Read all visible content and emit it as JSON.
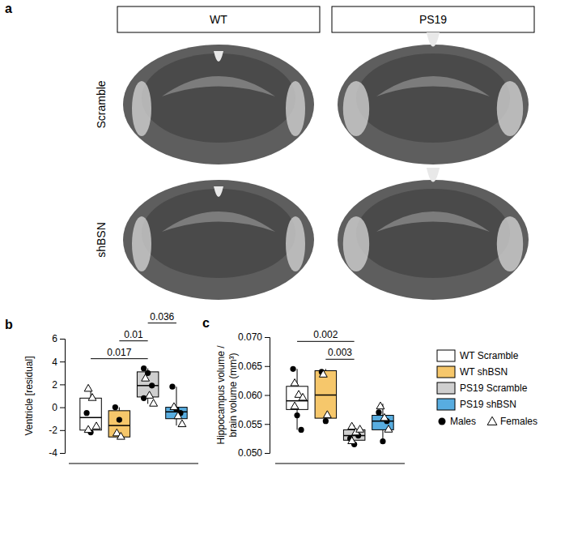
{
  "panel_a": {
    "label": "a",
    "columns": [
      "WT",
      "PS19"
    ],
    "rows": [
      "Scramble",
      "shBSN"
    ]
  },
  "legend": {
    "entries": [
      {
        "name": "WT Scramble",
        "color": "#ffffff"
      },
      {
        "name": "WT shBSN",
        "color": "#f6c76b"
      },
      {
        "name": "PS19 Scramble",
        "color": "#cfcfcf"
      },
      {
        "name": "PS19 shBSN",
        "color": "#58ade0"
      }
    ],
    "markers": [
      {
        "name": "Males",
        "marker": "circle"
      },
      {
        "name": "Females",
        "marker": "triangle"
      }
    ]
  },
  "chart_data": [
    {
      "type": "box",
      "panel_label": "b",
      "y_label": [
        "Ventricle [residual]"
      ],
      "ylim": [
        -4,
        6
      ],
      "yticks": [
        -4,
        -2,
        0,
        2,
        4,
        6
      ],
      "series": [
        {
          "box": {
            "whisker_low": -2.3,
            "q1": -2.0,
            "median": -0.9,
            "q3": 0.8,
            "whisker_high": 1.6
          },
          "males": [
            -0.5,
            -2.2
          ],
          "females": [
            1.6,
            0.8,
            -1.7,
            -2.0
          ]
        },
        {
          "box": {
            "whisker_low": -2.7,
            "q1": -2.6,
            "median": -1.6,
            "q3": -0.3,
            "whisker_high": 0.0
          },
          "males": [
            0.0,
            -1.1
          ],
          "females": [
            -2.3,
            -2.6
          ]
        },
        {
          "box": {
            "whisker_low": 0.3,
            "q1": 0.9,
            "median": 1.9,
            "q3": 3.1,
            "whisker_high": 3.4
          },
          "males": [
            3.4,
            3.0,
            1.9,
            0.8
          ],
          "females": [
            2.5,
            1.0,
            0.3
          ]
        },
        {
          "box": {
            "whisker_low": -1.6,
            "q1": -1.0,
            "median": -0.4,
            "q3": 0.0,
            "whisker_high": 1.8
          },
          "males": [
            1.8,
            -0.2,
            -0.5
          ],
          "females": [
            0.0,
            -0.8,
            -1.5
          ]
        }
      ],
      "annotations": [
        {
          "from": 0,
          "to": 2,
          "text": "0.017"
        },
        {
          "from": 1,
          "to": 2,
          "text": "0.01"
        },
        {
          "from": 2,
          "to": 3,
          "text": "0.036"
        }
      ]
    },
    {
      "type": "box",
      "panel_label": "c",
      "y_label": [
        "Hippocampus volume /",
        "brain volume (mm³)"
      ],
      "ylim": [
        0.05,
        0.07
      ],
      "yticks": [
        {
          "value": 0.05,
          "label": "0.050"
        },
        {
          "value": 0.055,
          "label": "0.055"
        },
        {
          "value": 0.06,
          "label": "0.060"
        },
        {
          "value": 0.065,
          "label": "0.065"
        },
        {
          "value": 0.07,
          "label": "0.070"
        }
      ],
      "series": [
        {
          "box": {
            "whisker_low": 0.054,
            "q1": 0.0575,
            "median": 0.059,
            "q3": 0.0615,
            "whisker_high": 0.0645
          },
          "males": [
            0.0645,
            0.0565,
            0.054
          ],
          "females": [
            0.062,
            0.06,
            0.0595,
            0.058
          ]
        },
        {
          "box": {
            "whisker_low": 0.0555,
            "q1": 0.056,
            "median": 0.06,
            "q3": 0.0642,
            "whisker_high": 0.0645
          },
          "males": [
            0.064,
            0.0555
          ],
          "females": [
            0.0635,
            0.0565
          ]
        },
        {
          "box": {
            "whisker_low": 0.0513,
            "q1": 0.0522,
            "median": 0.053,
            "q3": 0.054,
            "whisker_high": 0.0548
          },
          "males": [
            0.0525,
            0.0515,
            0.053
          ],
          "females": [
            0.0545,
            0.0535,
            0.054,
            0.052
          ]
        },
        {
          "box": {
            "whisker_low": 0.052,
            "q1": 0.054,
            "median": 0.0555,
            "q3": 0.0565,
            "whisker_high": 0.0585
          },
          "males": [
            0.057,
            0.052,
            0.0555
          ],
          "females": [
            0.058,
            0.056,
            0.054
          ]
        }
      ],
      "annotations": [
        {
          "from": 1,
          "to": 2,
          "text": "0.003"
        },
        {
          "from": 0,
          "to": 2,
          "text": "0.002"
        }
      ]
    }
  ]
}
